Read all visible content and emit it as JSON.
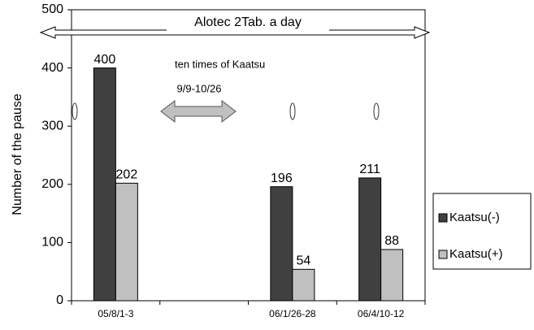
{
  "chart_data": {
    "type": "bar",
    "categories": [
      "05/8/1-3",
      null,
      "06/1/26-28",
      "06/4/10-12"
    ],
    "series": [
      {
        "name": "Kaatsu(-)",
        "color": "#404040",
        "values": [
          400,
          null,
          196,
          211
        ]
      },
      {
        "name": "Kaatsu(+)",
        "color": "#c0c0c0",
        "values": [
          202,
          null,
          54,
          88
        ]
      }
    ],
    "y_label": "Number of the pause",
    "ylim": [
      0,
      500
    ],
    "yticks": [
      0,
      100,
      200,
      300,
      400,
      500
    ],
    "annotations": [
      "Alotec 2Tab. a day",
      "ten times of Kaatsu",
      "9/9-10/26"
    ],
    "legend": "right"
  }
}
